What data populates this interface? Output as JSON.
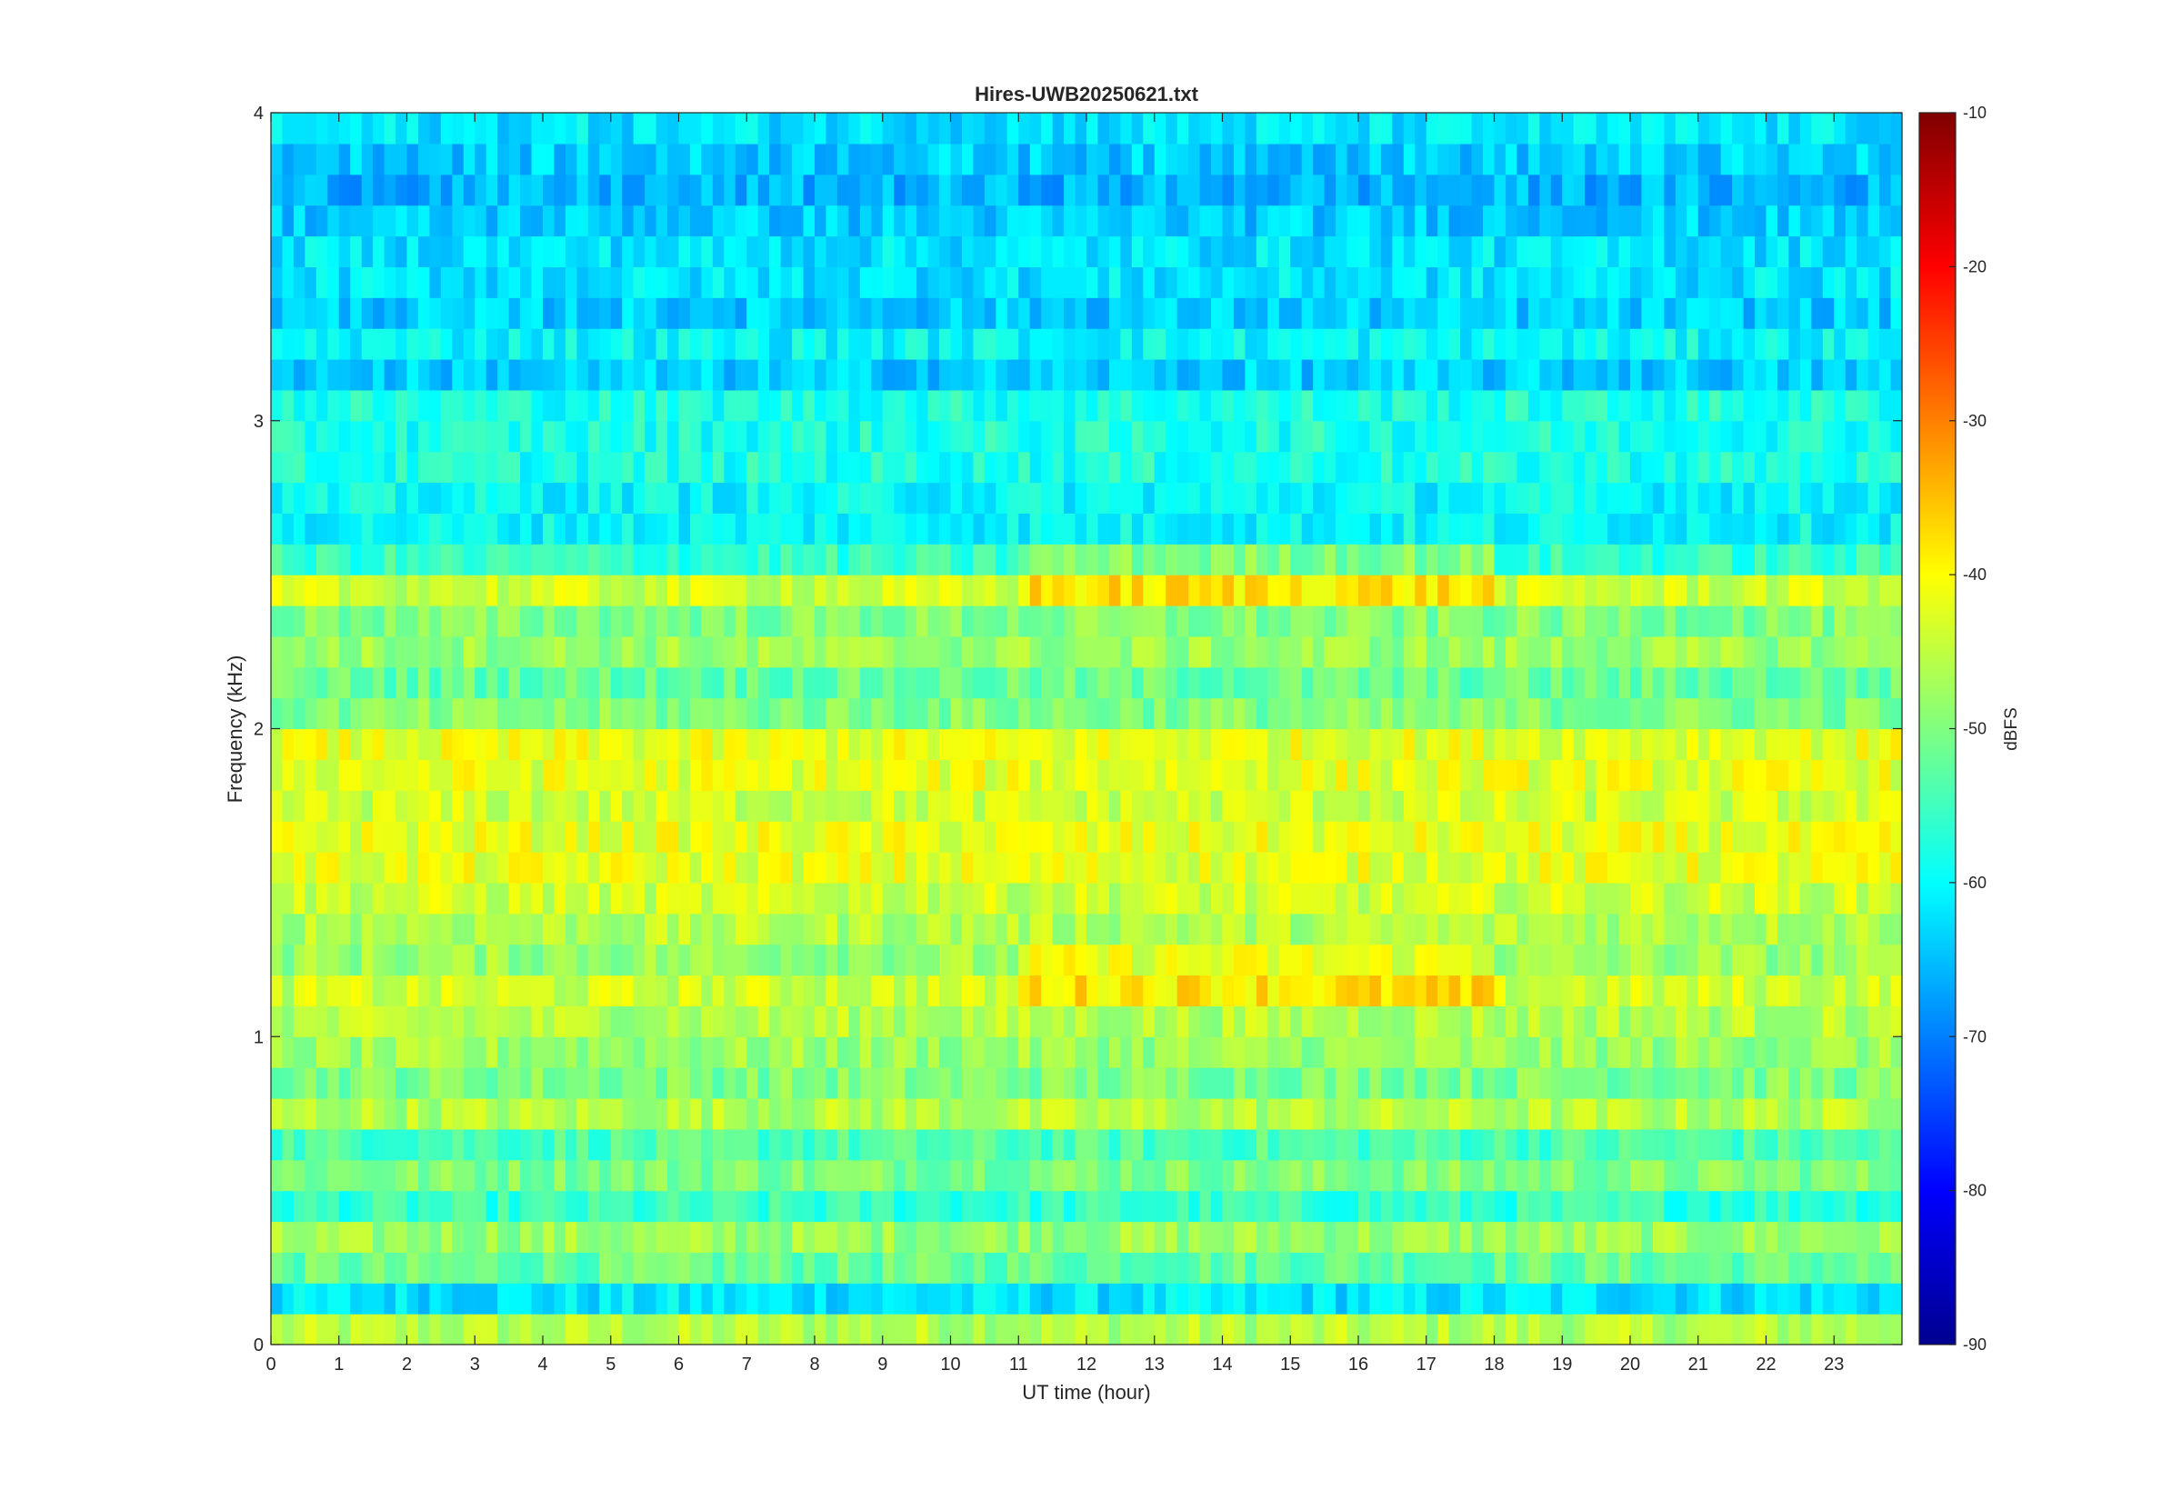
{
  "chart_data": {
    "type": "heatmap",
    "title": "Hires-UWB20250621.txt",
    "xlabel": "UT time (hour)",
    "ylabel": "Frequency (kHz)",
    "xlim": [
      0,
      24
    ],
    "ylim": [
      0,
      4
    ],
    "x_ticks": [
      0,
      1,
      2,
      3,
      4,
      5,
      6,
      7,
      8,
      9,
      10,
      11,
      12,
      13,
      14,
      15,
      16,
      17,
      18,
      19,
      20,
      21,
      22,
      23
    ],
    "y_ticks": [
      0,
      1,
      2,
      3,
      4
    ],
    "colorbar": {
      "label": "dBFS",
      "colormap": "jet",
      "clim": [
        -90,
        -10
      ],
      "ticks": [
        -10,
        -20,
        -30,
        -40,
        -50,
        -60,
        -70,
        -80,
        -90
      ]
    },
    "grid": false,
    "frequency_band_kHz": [
      0.0,
      0.1,
      0.2,
      0.3,
      0.4,
      0.5,
      0.6,
      0.7,
      0.8,
      0.9,
      1.0,
      1.1,
      1.2,
      1.3,
      1.4,
      1.5,
      1.6,
      1.7,
      1.8,
      1.9,
      2.0,
      2.1,
      2.2,
      2.3,
      2.4,
      2.5,
      2.6,
      2.7,
      2.8,
      2.9,
      3.0,
      3.1,
      3.2,
      3.3,
      3.4,
      3.5,
      3.6,
      3.7,
      3.8,
      3.9
    ],
    "hour_bins": [
      0,
      1,
      2,
      3,
      4,
      5,
      6,
      7,
      8,
      9,
      10,
      11,
      12,
      13,
      14,
      15,
      16,
      17,
      18,
      19,
      20,
      21,
      22,
      23
    ],
    "mean_level_dBFS_by_band": [
      -46,
      -62,
      -52,
      -48,
      -56,
      -50,
      -54,
      -46,
      -50,
      -48,
      -46,
      -44,
      -48,
      -46,
      -44,
      -42,
      -42,
      -44,
      -42,
      -42,
      -50,
      -52,
      -48,
      -50,
      -44,
      -56,
      -60,
      -60,
      -58,
      -58,
      -58,
      -64,
      -60,
      -64,
      -62,
      -62,
      -64,
      -66,
      -64,
      -62
    ],
    "notes_on_features": {
      "strong_band_hours": [
        11,
        18
      ],
      "strong_band_kHz": [
        1.1,
        1.2,
        2.4,
        2.5
      ]
    }
  }
}
